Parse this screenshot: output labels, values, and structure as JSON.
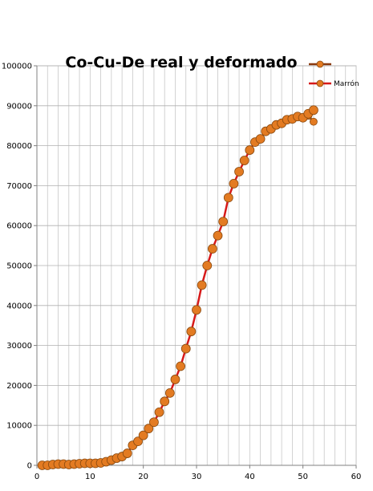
{
  "chart_data": {
    "type": "line",
    "title": "Co-Cu-De real y deformado",
    "xlabel": "",
    "ylabel": "",
    "xlim": [
      0,
      60
    ],
    "ylim": [
      0,
      100000
    ],
    "xticks": [
      0,
      10,
      20,
      30,
      40,
      50,
      60
    ],
    "yticks": [
      0,
      10000,
      20000,
      30000,
      40000,
      50000,
      60000,
      70000,
      80000,
      90000,
      100000
    ],
    "grid": true,
    "legend_position": "top-right",
    "series": [
      {
        "name": "",
        "color": "#8B3A0E",
        "marker_color": "#E37B22",
        "x": [
          51,
          52
        ],
        "y": [
          87500,
          86000
        ]
      },
      {
        "name": "Marrón",
        "color": "#D71A1A",
        "marker_color": "#E37B22",
        "x": [
          1,
          2,
          3,
          4,
          5,
          6,
          7,
          8,
          9,
          10,
          11,
          12,
          13,
          14,
          15,
          16,
          17,
          18,
          19,
          20,
          21,
          22,
          23,
          24,
          25,
          26,
          27,
          28,
          29,
          30,
          31,
          32,
          33,
          34,
          35,
          36,
          37,
          38,
          39,
          40,
          41,
          42,
          43,
          44,
          45,
          46,
          47,
          48,
          49,
          50,
          51,
          52
        ],
        "y": [
          0,
          0,
          200,
          300,
          300,
          200,
          300,
          400,
          500,
          500,
          500,
          600,
          900,
          1300,
          1800,
          2200,
          3000,
          5000,
          6000,
          7500,
          9200,
          10800,
          13300,
          16000,
          18100,
          21500,
          24800,
          29200,
          33500,
          38900,
          45100,
          50000,
          54200,
          57500,
          61000,
          67000,
          70500,
          73500,
          76300,
          78900,
          80900,
          81700,
          83600,
          84200,
          85200,
          85600,
          86500,
          86700,
          87300,
          87000,
          88000,
          88900
        ]
      }
    ]
  }
}
